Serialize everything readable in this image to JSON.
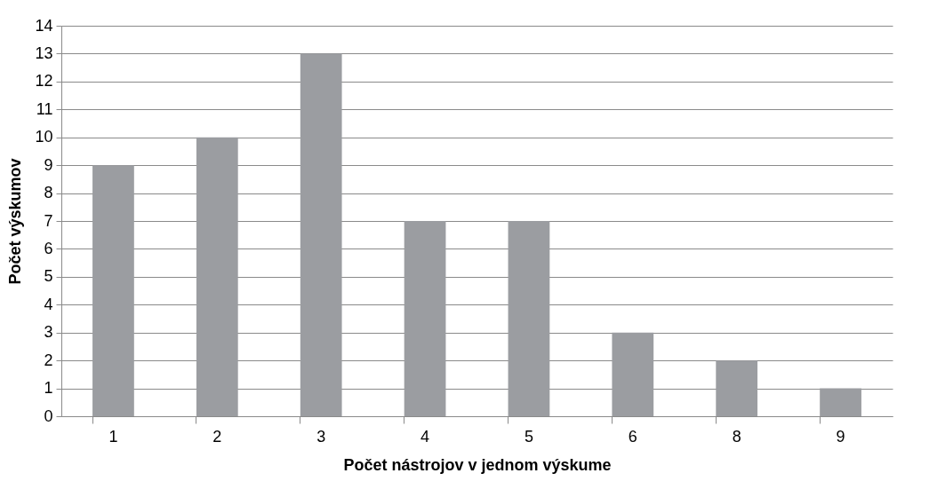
{
  "chart_data": {
    "type": "bar",
    "xlabel": "Počet nástrojov v jednom výskume",
    "ylabel": "Počet výskumov",
    "categories": [
      "1",
      "2",
      "3",
      "4",
      "5",
      "6",
      "8",
      "9"
    ],
    "values": [
      9,
      10,
      13,
      7,
      7,
      3,
      2,
      1
    ],
    "color": "#9b9da1",
    "ylim": [
      0,
      14
    ],
    "yticks": [
      0,
      1,
      2,
      3,
      4,
      5,
      6,
      7,
      8,
      9,
      10,
      11,
      12,
      13,
      14
    ],
    "grid": "y"
  }
}
